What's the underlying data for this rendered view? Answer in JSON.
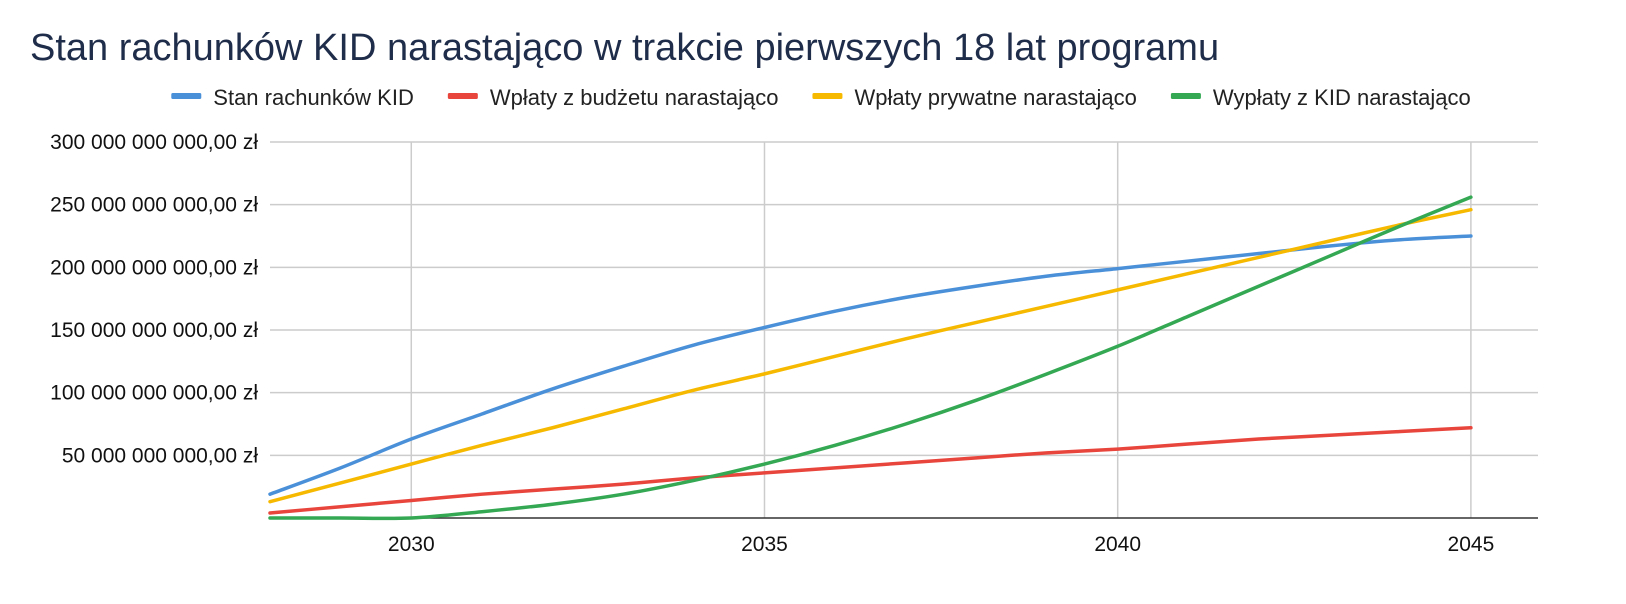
{
  "chart_data": {
    "type": "line",
    "title": "Stan rachunków KID narastająco w trakcie pierwszych 18 lat programu",
    "xlabel": "",
    "ylabel": "",
    "x": [
      2028,
      2029,
      2030,
      2031,
      2032,
      2033,
      2034,
      2035,
      2036,
      2037,
      2038,
      2039,
      2040,
      2041,
      2042,
      2043,
      2044,
      2045
    ],
    "xlim": [
      2028,
      2045.95
    ],
    "ylim": [
      0,
      300000000000
    ],
    "x_ticks": [
      2030,
      2035,
      2040,
      2045
    ],
    "y_ticks": [
      50000000000,
      100000000000,
      150000000000,
      200000000000,
      250000000000,
      300000000000
    ],
    "y_tick_labels": [
      "50 000 000 000,00 zł",
      "100 000 000 000,00 zł",
      "150 000 000 000,00 zł",
      "200 000 000 000,00 zł",
      "250 000 000 000,00 zł",
      "300 000 000 000,00 zł"
    ],
    "grid": true,
    "legend_position": "top",
    "series": [
      {
        "name": "Stan rachunków KID",
        "color": "#4a90d9",
        "values": [
          19000000000,
          40000000000,
          63000000000,
          83000000000,
          103000000000,
          121000000000,
          138000000000,
          152000000000,
          165000000000,
          176000000000,
          185000000000,
          193000000000,
          199000000000,
          205000000000,
          211000000000,
          217000000000,
          222000000000,
          225000000000
        ]
      },
      {
        "name": "Wpłaty z budżetu narastająco",
        "color": "#e8453c",
        "values": [
          4000000000,
          9000000000,
          14000000000,
          19000000000,
          23000000000,
          27000000000,
          32000000000,
          36000000000,
          40000000000,
          44000000000,
          48000000000,
          52000000000,
          55000000000,
          59000000000,
          63000000000,
          66000000000,
          69000000000,
          72000000000
        ]
      },
      {
        "name": "Wpłaty prywatne narastająco",
        "color": "#f6b900",
        "values": [
          13000000000,
          28000000000,
          43000000000,
          58000000000,
          72000000000,
          87000000000,
          102000000000,
          115000000000,
          129000000000,
          143000000000,
          156000000000,
          169000000000,
          182000000000,
          195000000000,
          208000000000,
          221000000000,
          234000000000,
          246000000000
        ]
      },
      {
        "name": "Wypłaty z KID narastająco",
        "color": "#34a853",
        "values": [
          0,
          0,
          0,
          5000000000,
          11000000000,
          19000000000,
          30000000000,
          43000000000,
          58000000000,
          75000000000,
          94000000000,
          115000000000,
          137000000000,
          161000000000,
          185000000000,
          209000000000,
          233000000000,
          256000000000
        ]
      }
    ]
  }
}
